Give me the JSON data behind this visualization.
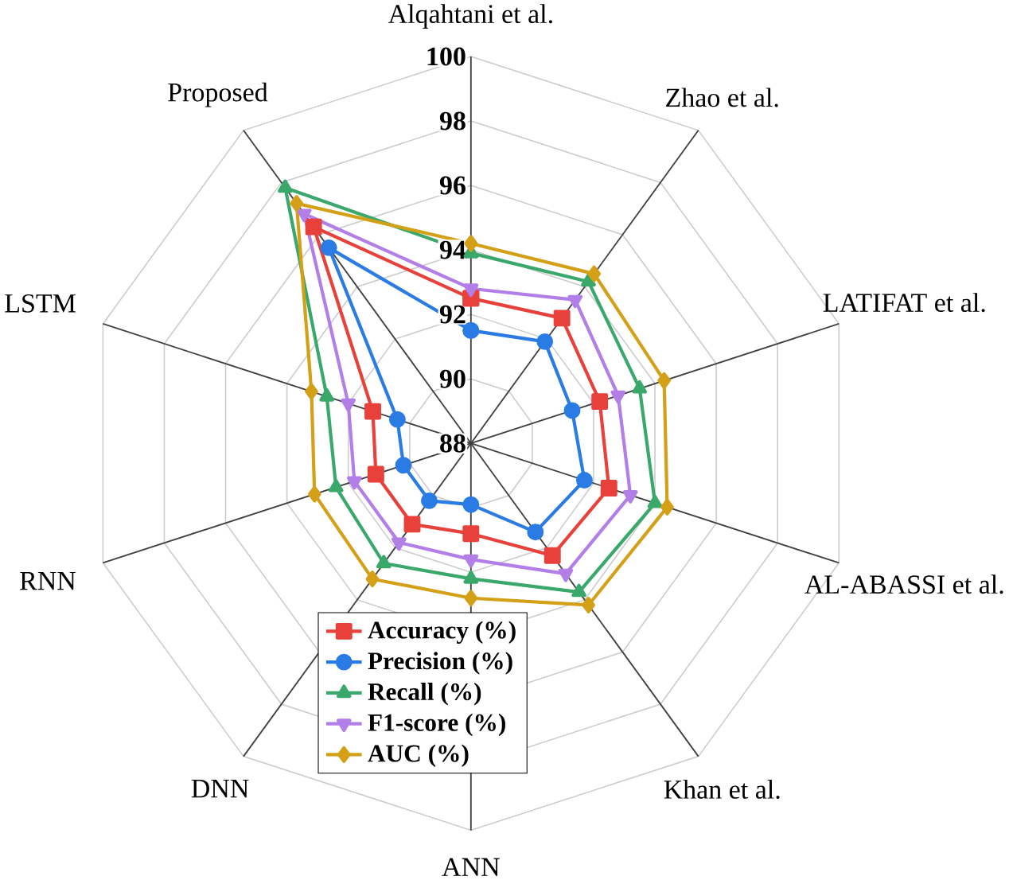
{
  "chart_data": {
    "type": "radar",
    "categories": [
      "Alqahtani et al.",
      "Zhao et al.",
      "LATIFAT et al.",
      "AL-ABASSI et al.",
      "Khan et al.",
      "ANN",
      "DNN",
      "RNN",
      "LSTM",
      "Proposed"
    ],
    "ylim": [
      88,
      100
    ],
    "yticks": [
      88,
      90,
      92,
      94,
      96,
      98,
      100
    ],
    "grid": true,
    "legend": "bottom",
    "line_style": "solid",
    "series": [
      {
        "name": "Accuracy (%)",
        "color": "#e8403a",
        "marker": "square",
        "values": [
          92.5,
          92.8,
          92.2,
          92.5,
          92.3,
          90.8,
          91.1,
          91.1,
          91.2,
          96.3
        ]
      },
      {
        "name": "Precision (%)",
        "color": "#2a7be4",
        "marker": "circle",
        "values": [
          91.5,
          91.9,
          91.3,
          91.7,
          91.4,
          89.9,
          90.2,
          90.2,
          90.4,
          95.5
        ]
      },
      {
        "name": "Recall (%)",
        "color": "#3aa86b",
        "marker": "triangle",
        "values": [
          93.9,
          94.2,
          93.5,
          94.0,
          93.7,
          92.2,
          92.6,
          92.4,
          92.7,
          97.8
        ]
      },
      {
        "name": "F1-score (%)",
        "color": "#b27ee8",
        "marker": "triangle down",
        "values": [
          92.8,
          93.5,
          92.8,
          93.2,
          93.0,
          91.6,
          91.8,
          91.8,
          92.0,
          96.8
        ]
      },
      {
        "name": "AUC (%)",
        "color": "#d4a017",
        "marker": "diamond",
        "values": [
          94.2,
          94.5,
          94.3,
          94.4,
          94.2,
          92.8,
          93.2,
          93.1,
          93.2,
          97.2
        ]
      }
    ]
  }
}
